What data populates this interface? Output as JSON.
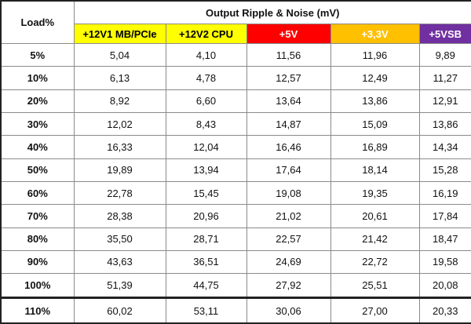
{
  "table": {
    "corner": "Load%",
    "group_header": "Output Ripple & Noise (mV)",
    "columns": [
      {
        "label": "+12V1 MB/PCIe",
        "color": "#ffff00",
        "text_color": "#000000"
      },
      {
        "label": "+12V2 CPU",
        "color": "#ffff00",
        "text_color": "#000000"
      },
      {
        "label": "+5V",
        "color": "#ff0000",
        "text_color": "#ffffff"
      },
      {
        "label": "+3,3V",
        "color": "#ffc000",
        "text_color": "#ffffff"
      },
      {
        "label": "+5VSB",
        "color": "#7030a0",
        "text_color": "#ffffff"
      }
    ],
    "rows": [
      [
        "5%",
        "5,04",
        "4,10",
        "11,56",
        "11,96",
        "9,89"
      ],
      [
        "10%",
        "6,13",
        "4,78",
        "12,57",
        "12,49",
        "11,27"
      ],
      [
        "20%",
        "8,92",
        "6,60",
        "13,64",
        "13,86",
        "12,91"
      ],
      [
        "30%",
        "12,02",
        "8,43",
        "14,87",
        "15,09",
        "13,86"
      ],
      [
        "40%",
        "16,33",
        "12,04",
        "16,46",
        "16,89",
        "14,34"
      ],
      [
        "50%",
        "19,89",
        "13,94",
        "17,64",
        "18,14",
        "15,28"
      ],
      [
        "60%",
        "22,78",
        "15,45",
        "19,08",
        "19,35",
        "16,19"
      ],
      [
        "70%",
        "28,38",
        "20,96",
        "21,02",
        "20,61",
        "17,84"
      ],
      [
        "80%",
        "35,50",
        "28,71",
        "22,57",
        "21,42",
        "18,47"
      ],
      [
        "90%",
        "43,63",
        "36,51",
        "24,69",
        "22,72",
        "19,58"
      ],
      [
        "100%",
        "51,39",
        "44,75",
        "27,92",
        "25,51",
        "20,08"
      ],
      [
        "110%",
        "60,02",
        "53,11",
        "30,06",
        "27,00",
        "20,33"
      ]
    ]
  }
}
